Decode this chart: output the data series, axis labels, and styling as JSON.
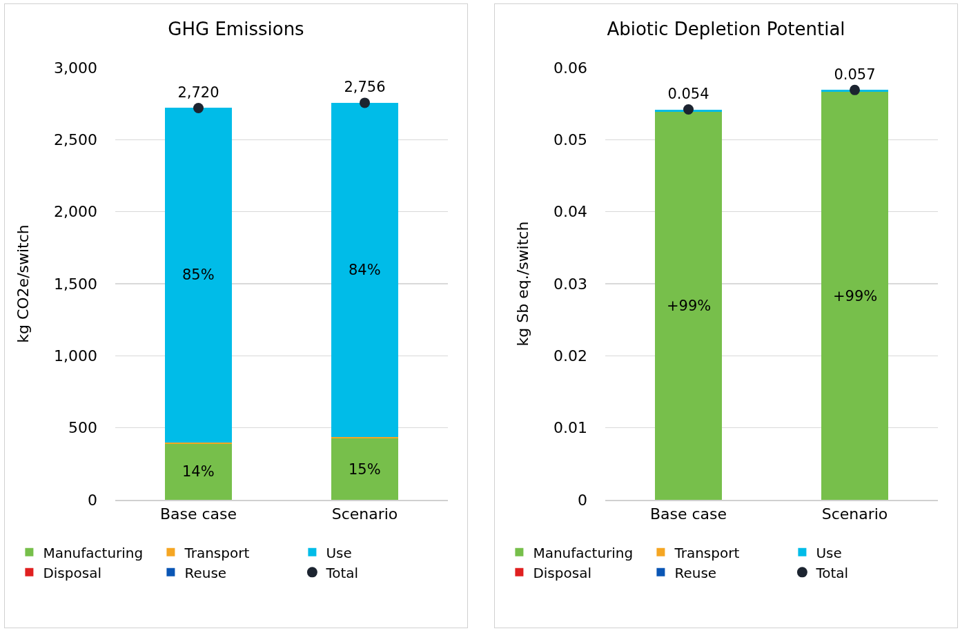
{
  "chart_data": [
    {
      "type": "bar",
      "title": "GHG Emissions",
      "ylabel": "kg CO2e/switch",
      "categories": [
        "Base case",
        "Scenario"
      ],
      "stacked": true,
      "grid": "y",
      "legend": "bottom",
      "annotations": [
        "14%",
        "15%",
        "85%",
        "84%"
      ],
      "ylim": [
        0,
        3000
      ],
      "yticks": [
        0,
        {
          "value": 500,
          "label": "500"
        },
        {
          "value": 1000,
          "label": "1,000"
        },
        {
          "value": 1500,
          "label": "1,500"
        },
        {
          "value": 2000,
          "label": "2,000"
        },
        {
          "value": 2500,
          "label": "2,500"
        },
        {
          "value": 3000,
          "label": "3,000"
        }
      ],
      "series": [
        {
          "name": "Manufacturing",
          "color": "#77bf4b",
          "values": [
            390,
            425
          ]
        },
        {
          "name": "Transport",
          "color": "#f5a623",
          "values": [
            10,
            12
          ]
        },
        {
          "name": "Use",
          "color": "#00bce8",
          "values": [
            2320,
            2319
          ]
        },
        {
          "name": "Disposal",
          "color": "#e02020",
          "values": [
            0,
            0
          ]
        },
        {
          "name": "Reuse",
          "color": "#0a56b5",
          "values": [
            0,
            0
          ]
        },
        {
          "name": "Total",
          "type": "scatter",
          "marker": "circle",
          "color": "#1c2430",
          "values": [
            2720,
            2756
          ],
          "value_labels": [
            "2,720",
            "2,756"
          ]
        }
      ]
    },
    {
      "type": "bar",
      "title": "Abiotic Depletion Potential",
      "ylabel": "kg Sb eq./switch",
      "categories": [
        "Base case",
        "Scenario"
      ],
      "stacked": true,
      "grid": "y",
      "legend": "bottom",
      "annotations": [
        "+99%",
        "+99%"
      ],
      "ylim": [
        0,
        0.06
      ],
      "yticks": [
        0,
        0.01,
        0.02,
        0.03,
        0.04,
        0.05,
        0.06
      ],
      "series": [
        {
          "name": "Manufacturing",
          "color": "#77bf4b",
          "values": [
            0.0539,
            0.0566
          ]
        },
        {
          "name": "Transport",
          "color": "#f5a623",
          "values": [
            0,
            0
          ]
        },
        {
          "name": "Use",
          "color": "#00bce8",
          "values": [
            0.0003,
            0.0003
          ]
        },
        {
          "name": "Disposal",
          "color": "#e02020",
          "values": [
            0,
            0
          ]
        },
        {
          "name": "Reuse",
          "color": "#0a56b5",
          "values": [
            0,
            0
          ]
        },
        {
          "name": "Total",
          "type": "scatter",
          "marker": "circle",
          "color": "#1c2430",
          "values": [
            0.0542,
            0.0569
          ],
          "value_labels": [
            "0.054",
            "0.057"
          ]
        }
      ]
    }
  ]
}
